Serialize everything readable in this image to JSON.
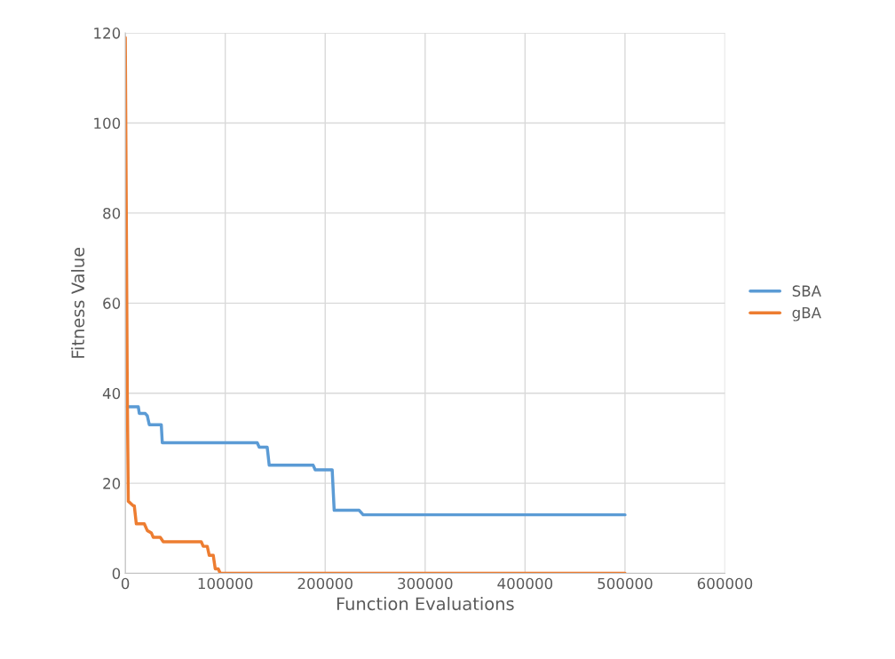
{
  "chart_data": {
    "type": "line",
    "xlabel": "Function Evaluations",
    "ylabel": "Fitness Value",
    "xlim": [
      0,
      600000
    ],
    "ylim": [
      0,
      120
    ],
    "xticks": [
      0,
      100000,
      200000,
      300000,
      400000,
      500000,
      600000
    ],
    "yticks": [
      0,
      20,
      40,
      60,
      80,
      100,
      120
    ],
    "grid": true,
    "legend": "right",
    "marker": "none",
    "line_style": "solid",
    "series": [
      {
        "name": "SBA",
        "color": "#5b9bd5",
        "x": [
          2000,
          13000,
          14000,
          20000,
          22000,
          24000,
          34000,
          36000,
          37000,
          132000,
          134000,
          142000,
          144000,
          188000,
          190000,
          207000,
          209000,
          234000,
          238000,
          500000
        ],
        "values": [
          37,
          37,
          35.5,
          35.5,
          35,
          33,
          33,
          33,
          29,
          29,
          28,
          28,
          24,
          24,
          23,
          23,
          14,
          14,
          13,
          13
        ]
      },
      {
        "name": "gBA",
        "color": "#ed7d31",
        "x": [
          0,
          1000,
          2000,
          3000,
          8000,
          9000,
          11000,
          19000,
          22000,
          26000,
          28000,
          35000,
          38000,
          76000,
          78000,
          82000,
          84000,
          88000,
          90000,
          93000,
          95000,
          500000
        ],
        "values": [
          119,
          80,
          40,
          16,
          15,
          15,
          11,
          11,
          9.5,
          9,
          8,
          8,
          7,
          7,
          6,
          6,
          4,
          4,
          1,
          1,
          0,
          0
        ]
      }
    ]
  }
}
